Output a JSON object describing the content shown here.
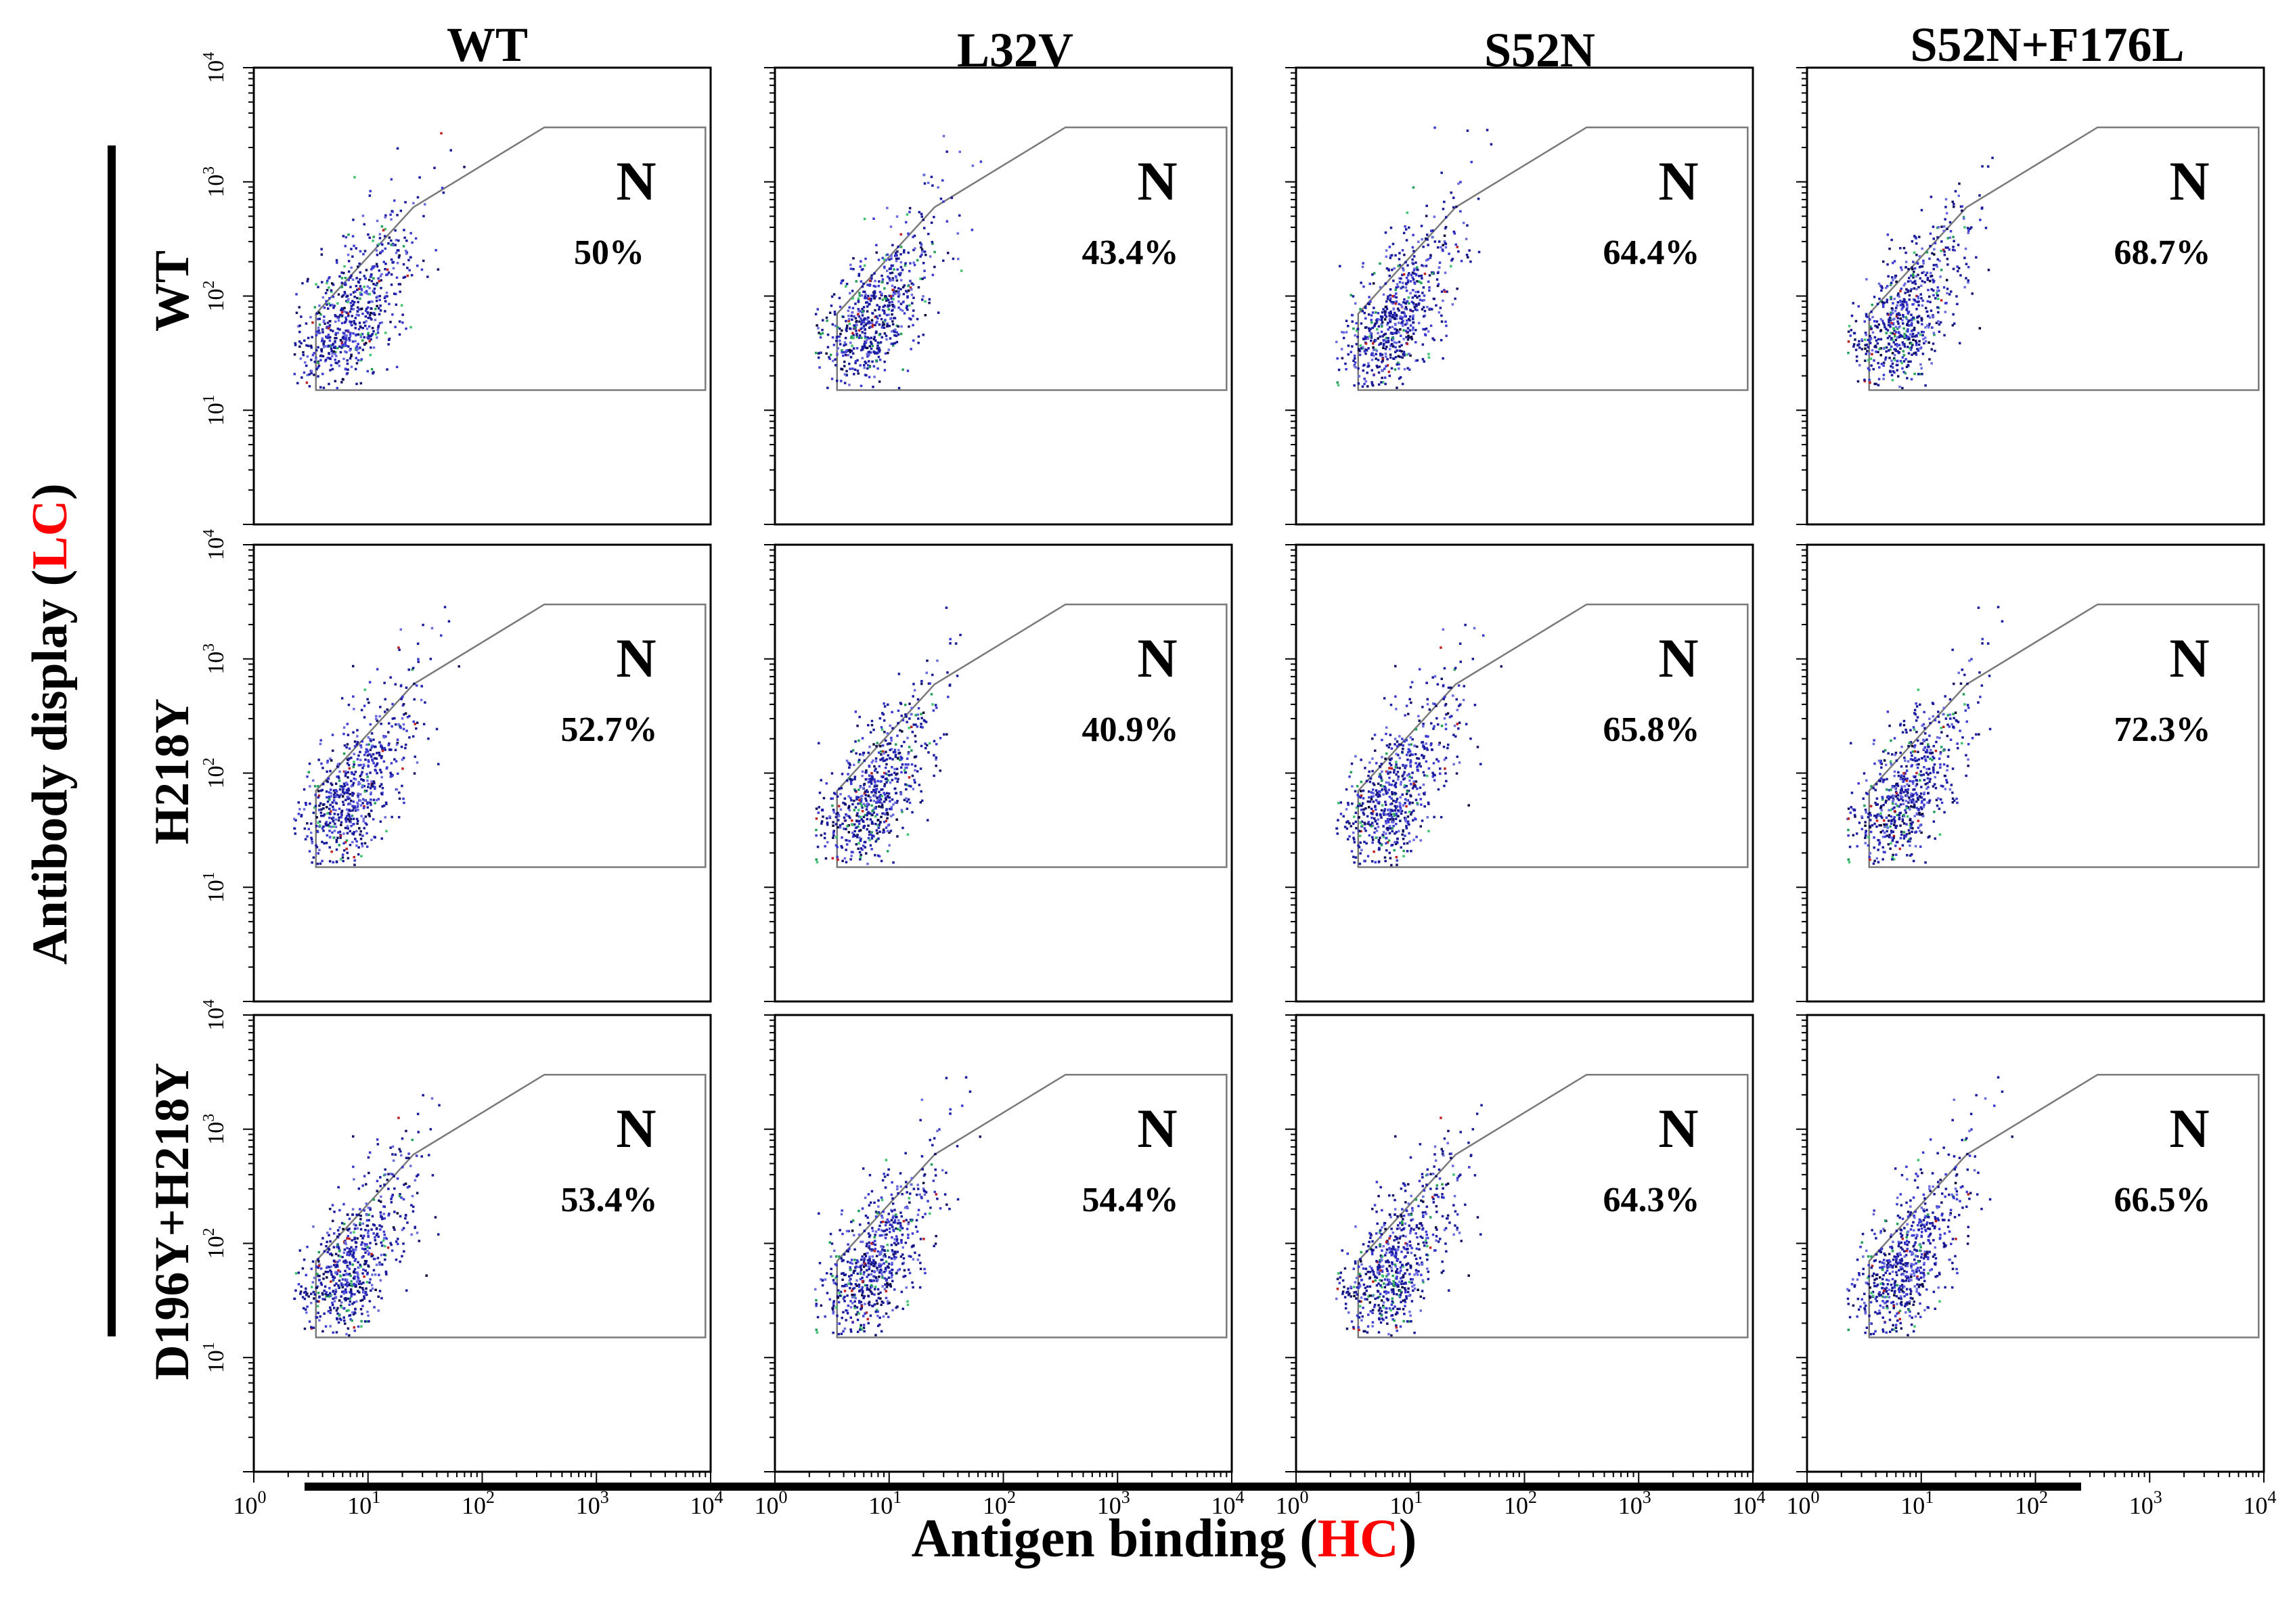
{
  "chart_data": {
    "type": "scatter",
    "description_axes": {
      "x_scale": "log",
      "y_scale": "log",
      "xlim": [
        1,
        10000
      ],
      "ylim": [
        1,
        10000
      ]
    },
    "column_labels": [
      "WT",
      "L32V",
      "S52N",
      "S52N+F176L"
    ],
    "row_labels": [
      "WT",
      "H218Y",
      "D196Y+H218Y"
    ],
    "ylabel": {
      "prefix": "Antibody display (",
      "highlight": "LC",
      "suffix": ")"
    },
    "xlabel": {
      "prefix": "Antigen binding (",
      "highlight": "HC",
      "suffix": ")"
    },
    "highlight_color": "#ff0000",
    "tick_base": "10",
    "tick_exponents": [
      "0",
      "1",
      "2",
      "3",
      "4"
    ],
    "y_tick_exponents": [
      "1",
      "2",
      "3",
      "4"
    ],
    "gate_label": "N",
    "gate_polygon": [
      [
        3.5,
        15
      ],
      [
        3.5,
        70
      ],
      [
        25,
        600
      ],
      [
        350,
        3000
      ],
      [
        10000,
        3000
      ],
      [
        10000,
        15
      ]
    ],
    "panels": [
      {
        "row": 0,
        "col": 0,
        "percent": "50%"
      },
      {
        "row": 0,
        "col": 1,
        "percent": "43.4%"
      },
      {
        "row": 0,
        "col": 2,
        "percent": "64.4%"
      },
      {
        "row": 0,
        "col": 3,
        "percent": "68.7%"
      },
      {
        "row": 1,
        "col": 0,
        "percent": "52.7%"
      },
      {
        "row": 1,
        "col": 1,
        "percent": "40.9%"
      },
      {
        "row": 1,
        "col": 2,
        "percent": "65.8%"
      },
      {
        "row": 1,
        "col": 3,
        "percent": "72.3%"
      },
      {
        "row": 2,
        "col": 0,
        "percent": "53.4%"
      },
      {
        "row": 2,
        "col": 1,
        "percent": "54.4%"
      },
      {
        "row": 2,
        "col": 2,
        "percent": "64.3%"
      },
      {
        "row": 2,
        "col": 3,
        "percent": "66.5%"
      }
    ],
    "dot_colors": [
      "#1a1a9c",
      "#3a3ad0",
      "#6a6ae0",
      "#111166",
      "#22a05a",
      "#3ec46e",
      "#c02020",
      "#000033"
    ]
  }
}
